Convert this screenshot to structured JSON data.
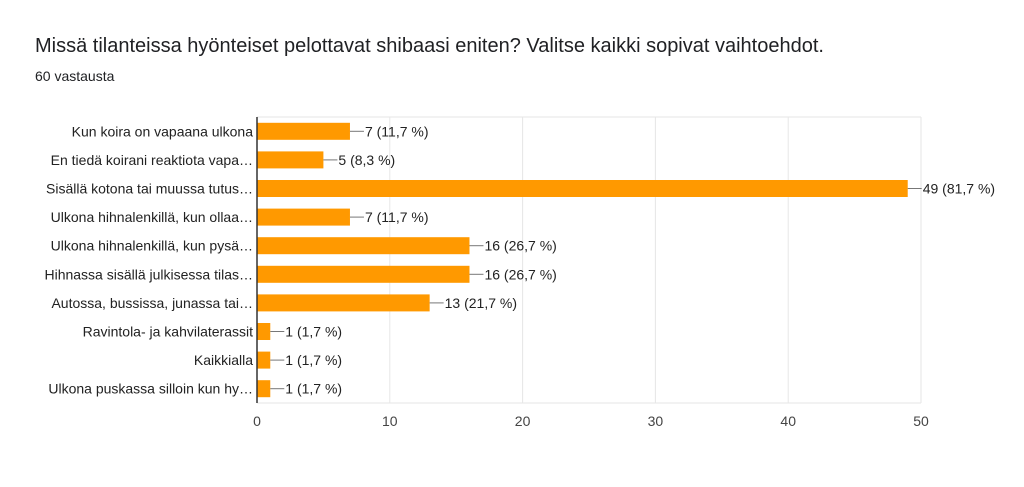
{
  "chart_data": {
    "type": "bar",
    "orientation": "horizontal",
    "title": "Missä tilanteissa hyönteiset pelottavat shibaasi eniten? Valitse kaikki sopivat vaihtoehdot.",
    "subtitle": "60 vastausta",
    "categories": [
      "Kun koira on vapaana ulkona",
      "En tiedä koirani reaktiota vapa…",
      "Sisällä kotona tai muussa tutus…",
      "Ulkona hihnalenkillä, kun ollaa…",
      "Ulkona hihnalenkillä, kun pysä…",
      "Hihnassa sisällä julkisessa tilas…",
      "Autossa, bussissa, junassa tai…",
      "Ravintola- ja kahvilaterassit",
      "Kaikkialla",
      "Ulkona puskassa silloin kun hy…"
    ],
    "values": [
      7,
      5,
      49,
      7,
      16,
      16,
      13,
      1,
      1,
      1
    ],
    "data_labels": [
      "7 (11,7 %)",
      "5 (8,3 %)",
      "49 (81,7 %)",
      "7 (11,7 %)",
      "16 (26,7 %)",
      "16 (26,7 %)",
      "13 (21,7 %)",
      "1 (1,7 %)",
      "1 (1,7 %)",
      "1 (1,7 %)"
    ],
    "xlim": [
      0,
      50
    ],
    "xticks": [
      "0",
      "10",
      "20",
      "30",
      "40",
      "50"
    ],
    "grid": true,
    "bar_color": "#ff9900"
  }
}
